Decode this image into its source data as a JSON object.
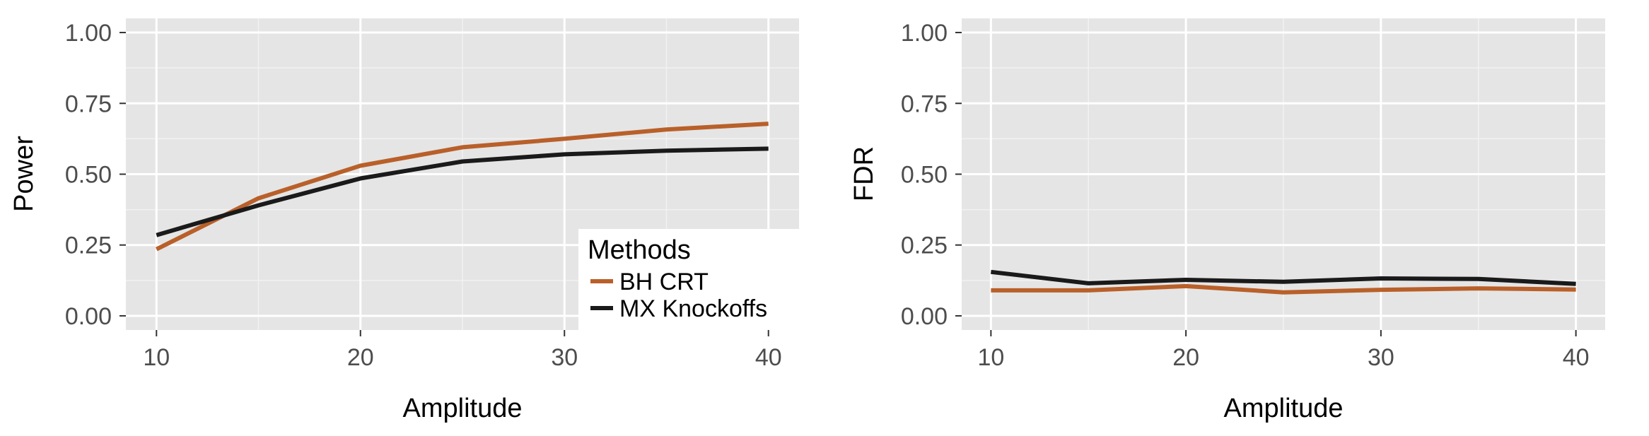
{
  "chart_data": [
    {
      "type": "line",
      "title": "",
      "xlabel": "Amplitude",
      "ylabel": "Power",
      "x": [
        10,
        15,
        20,
        25,
        30,
        35,
        40
      ],
      "xticks": [
        10,
        20,
        30,
        40
      ],
      "yticks": [
        0.0,
        0.25,
        0.5,
        0.75,
        1.0
      ],
      "ytick_labels": [
        "0.00",
        "0.25",
        "0.50",
        "0.75",
        "1.00"
      ],
      "xlim": [
        8.5,
        41.5
      ],
      "ylim": [
        -0.05,
        1.05
      ],
      "grid": true,
      "legend": {
        "title": "Methods",
        "placement": "bottom-right",
        "entries": [
          "BH CRT",
          "MX Knockoffs"
        ]
      },
      "series": [
        {
          "name": "BH CRT",
          "color": "#b9602a",
          "values": [
            0.235,
            0.415,
            0.53,
            0.595,
            0.625,
            0.658,
            0.678
          ]
        },
        {
          "name": "MX Knockoffs",
          "color": "#1a1a1a",
          "values": [
            0.285,
            0.39,
            0.485,
            0.545,
            0.57,
            0.583,
            0.59
          ]
        }
      ]
    },
    {
      "type": "line",
      "title": "",
      "xlabel": "Amplitude",
      "ylabel": "FDR",
      "x": [
        10,
        15,
        20,
        25,
        30,
        35,
        40
      ],
      "xticks": [
        10,
        20,
        30,
        40
      ],
      "yticks": [
        0.0,
        0.25,
        0.5,
        0.75,
        1.0
      ],
      "ytick_labels": [
        "0.00",
        "0.25",
        "0.50",
        "0.75",
        "1.00"
      ],
      "xlim": [
        8.5,
        41.5
      ],
      "ylim": [
        -0.05,
        1.05
      ],
      "grid": true,
      "series": [
        {
          "name": "BH CRT",
          "color": "#b9602a",
          "values": [
            0.09,
            0.09,
            0.105,
            0.083,
            0.092,
            0.097,
            0.093
          ]
        },
        {
          "name": "MX Knockoffs",
          "color": "#1a1a1a",
          "values": [
            0.155,
            0.115,
            0.127,
            0.12,
            0.132,
            0.13,
            0.113
          ]
        }
      ]
    }
  ]
}
